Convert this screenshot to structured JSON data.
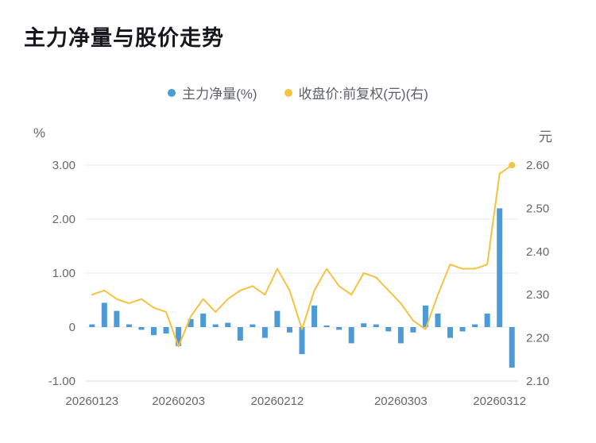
{
  "chart_data": {
    "type": "combo",
    "title": "主力净量与股价走势",
    "grid_color": "#e7e7e7",
    "axis_line_color": "#d9d9d9",
    "axis_label_color": "#676767",
    "series": [
      {
        "name": "主力净量(%)",
        "type": "bar",
        "axis": "left",
        "color": "#4d9bd6",
        "values": [
          0.05,
          0.45,
          0.3,
          0.05,
          -0.05,
          -0.15,
          -0.12,
          -0.35,
          0.15,
          0.25,
          0.05,
          0.08,
          -0.25,
          0.05,
          -0.2,
          0.3,
          -0.1,
          -0.5,
          0.4,
          0.03,
          -0.05,
          -0.3,
          0.07,
          0.05,
          -0.08,
          -0.3,
          -0.1,
          0.4,
          0.25,
          -0.2,
          -0.08,
          0.05,
          0.25,
          2.2,
          -0.75
        ]
      },
      {
        "name": "收盘价:前复权(元)(右)",
        "type": "line",
        "axis": "right",
        "color": "#f5c242",
        "values": [
          2.3,
          2.31,
          2.29,
          2.28,
          2.29,
          2.27,
          2.26,
          2.18,
          2.25,
          2.29,
          2.26,
          2.29,
          2.31,
          2.32,
          2.3,
          2.36,
          2.31,
          2.22,
          2.31,
          2.36,
          2.32,
          2.3,
          2.35,
          2.34,
          2.31,
          2.28,
          2.24,
          2.22,
          2.3,
          2.37,
          2.36,
          2.36,
          2.37,
          2.58,
          2.6
        ]
      }
    ],
    "left_axis": {
      "unit": "%",
      "min": -1.0,
      "max": 3.0,
      "ticks": [
        "3.00",
        "2.00",
        "1.00",
        "0",
        "-1.00"
      ]
    },
    "right_axis": {
      "unit": "元",
      "min": 2.1,
      "max": 2.6,
      "ticks": [
        "2.60",
        "2.50",
        "2.40",
        "2.30",
        "2.20",
        "2.10"
      ]
    },
    "x_axis": {
      "n_points": 35,
      "tick_labels": [
        {
          "label": "20260123",
          "index": 0
        },
        {
          "label": "20260203",
          "index": 7
        },
        {
          "label": "20260212",
          "index": 15
        },
        {
          "label": "20260303",
          "index": 25
        },
        {
          "label": "20260312",
          "index": 33
        }
      ]
    }
  }
}
